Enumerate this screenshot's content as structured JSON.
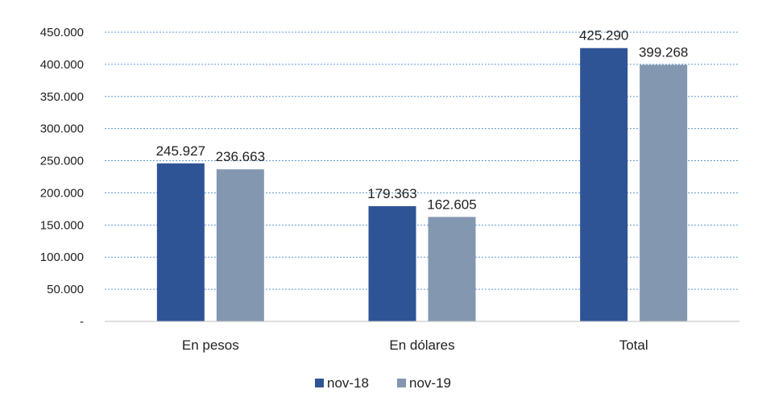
{
  "chart_data": {
    "type": "bar",
    "title": "",
    "xlabel": "",
    "ylabel": "",
    "categories": [
      "En pesos",
      "En dólares",
      "Total"
    ],
    "series": [
      {
        "name": "nov-18",
        "color": "#2F5496",
        "values": [
          245927,
          179363,
          425290
        ]
      },
      {
        "name": "nov-19",
        "color": "#8497B0",
        "values": [
          236663,
          162605,
          399268
        ]
      }
    ],
    "value_labels": [
      [
        "245.927",
        "179.363",
        "425.290"
      ],
      [
        "236.663",
        "162.605",
        "399.268"
      ]
    ],
    "ylim": [
      0,
      450000
    ],
    "yticks": [
      0,
      50000,
      100000,
      150000,
      200000,
      250000,
      300000,
      350000,
      400000,
      450000
    ],
    "ytick_labels": [
      "-",
      "50.000",
      "100.000",
      "150.000",
      "200.000",
      "250.000",
      "300.000",
      "350.000",
      "400.000",
      "450.000"
    ],
    "grid": true,
    "grid_color": "#5B9BD5",
    "legend_position": "bottom-center"
  }
}
